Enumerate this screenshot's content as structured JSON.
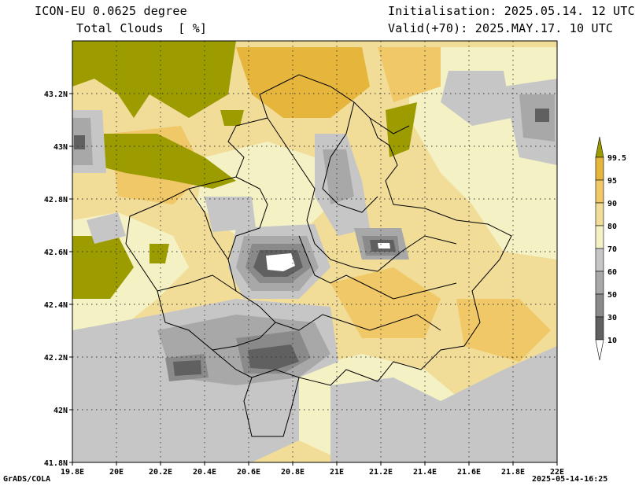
{
  "header": {
    "model": "ICON-EU 0.0625 degree",
    "variable": "Total Clouds  [ %]",
    "init": "Initialisation: 2025.05.14. 12 UTC",
    "valid": "Valid(+70): 2025.MAY.17. 10 UTC"
  },
  "axes": {
    "lat_labels": [
      "43.2N",
      "43N",
      "42.8N",
      "42.6N",
      "42.4N",
      "42.2N",
      "42N",
      "41.8N"
    ],
    "lon_labels": [
      "19.8E",
      "20E",
      "20.2E",
      "20.4E",
      "20.6E",
      "20.8E",
      "21E",
      "21.2E",
      "21.4E",
      "21.6E",
      "21.8E",
      "22E"
    ]
  },
  "legend": {
    "levels": [
      "99.5",
      "95",
      "90",
      "80",
      "70",
      "60",
      "50",
      "30",
      "10"
    ],
    "colors": {
      "c0": "#ffffff",
      "c1": "#606060",
      "c2": "#8a8a8a",
      "c3": "#a8a8a8",
      "c4": "#c6c6c6",
      "c5": "#f4f2c4",
      "c6": "#f1dc98",
      "c7": "#f0c868",
      "c8": "#e6b63c",
      "c9": "#9c9c00"
    }
  },
  "footer": {
    "credit": "GrADS/COLA",
    "timestamp": "2025-05-14-16:25"
  }
}
